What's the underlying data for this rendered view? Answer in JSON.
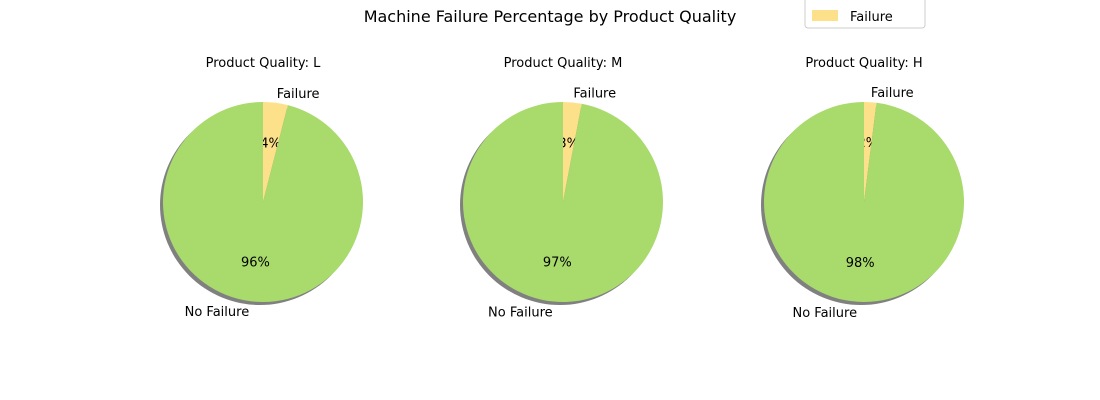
{
  "chart_data": {
    "type": "pie",
    "title": "Machine Failure Percentage by Product Quality",
    "legend": {
      "placement": "top-right",
      "entries": [
        {
          "label": "Failure",
          "color": "#fde08a"
        }
      ]
    },
    "colors": {
      "Failure": "#fde08a",
      "No Failure": "#a8da6c",
      "shadow": "#808080"
    },
    "pies": [
      {
        "subtitle": "Product Quality: L",
        "slices": [
          {
            "label": "Failure",
            "value": 4,
            "pct_label": "4%"
          },
          {
            "label": "No Failure",
            "value": 96,
            "pct_label": "96%"
          }
        ]
      },
      {
        "subtitle": "Product Quality: M",
        "slices": [
          {
            "label": "Failure",
            "value": 3,
            "pct_label": "3%"
          },
          {
            "label": "No Failure",
            "value": 97,
            "pct_label": "97%"
          }
        ]
      },
      {
        "subtitle": "Product Quality: H",
        "slices": [
          {
            "label": "Failure",
            "value": 2,
            "pct_label": "2%"
          },
          {
            "label": "No Failure",
            "value": 98,
            "pct_label": "98%"
          }
        ]
      }
    ]
  }
}
